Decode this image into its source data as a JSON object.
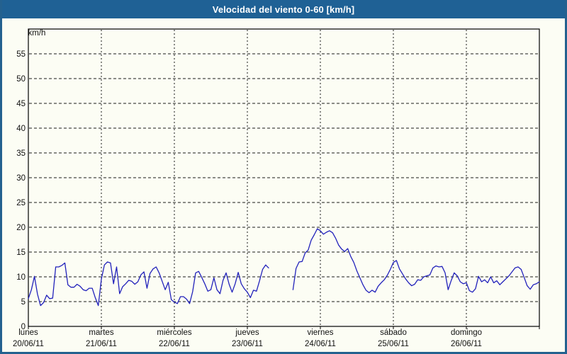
{
  "window": {
    "title": "Velocidad del viento 0-60 [km/h]"
  },
  "colors": {
    "frame": "#24618f",
    "titlebar_bg": "#1f6195",
    "title_text": "#ffffff",
    "content_bg": "#fcfdf4",
    "axis": "#000000",
    "grid": "#1a1a1a",
    "tick_text": "#111111",
    "series_line": "#2222bb"
  },
  "chart_data": {
    "type": "line",
    "title": "Velocidad del viento 0-60 [km/h]",
    "unit_label": "km/h",
    "ylim": [
      0,
      60
    ],
    "ytick_step": 5,
    "ytick_labels": [
      "0",
      "5",
      "10",
      "15",
      "20",
      "25",
      "30",
      "35",
      "40",
      "45",
      "50",
      "55"
    ],
    "grid": "dashed",
    "legend": "none",
    "x_days": [
      {
        "name": "lunes",
        "date": "20/06/11"
      },
      {
        "name": "martes",
        "date": "21/06/11"
      },
      {
        "name": "miércoles",
        "date": "22/06/11"
      },
      {
        "name": "jueves",
        "date": "23/06/11"
      },
      {
        "name": "viernes",
        "date": "24/06/11"
      },
      {
        "name": "sábado",
        "date": "25/06/11"
      },
      {
        "name": "domingo",
        "date": "26/06/11"
      }
    ],
    "hours_per_point": 1,
    "note": "hourly wind speed km/h; nulls = data gap on jueves morning",
    "series": [
      {
        "name": "Velocidad del viento",
        "color": "#2222bb",
        "values": [
          5.6,
          7.4,
          10.1,
          6.5,
          4.2,
          4.8,
          6.3,
          5.6,
          5.7,
          12.0,
          12.0,
          12.3,
          12.8,
          8.4,
          7.9,
          7.9,
          8.5,
          8.1,
          7.4,
          7.2,
          7.7,
          7.7,
          5.8,
          4.2,
          9.5,
          12.4,
          13.0,
          12.8,
          8.6,
          12.0,
          6.6,
          8.0,
          8.6,
          9.3,
          9.1,
          8.5,
          9.0,
          10.4,
          11.0,
          7.7,
          10.7,
          11.6,
          12.0,
          10.8,
          9.1,
          7.4,
          8.9,
          5.4,
          4.9,
          4.6,
          6.0,
          6.0,
          5.5,
          4.6,
          7.0,
          10.8,
          11.1,
          9.9,
          8.6,
          7.1,
          7.4,
          9.8,
          7.4,
          6.6,
          9.3,
          10.8,
          8.5,
          6.9,
          8.6,
          10.9,
          8.6,
          7.6,
          6.9,
          5.8,
          7.3,
          7.1,
          9.2,
          11.5,
          12.4,
          11.8,
          null,
          null,
          null,
          null,
          null,
          null,
          null,
          7.4,
          11.7,
          13.0,
          13.1,
          14.8,
          15.4,
          17.4,
          18.5,
          19.7,
          19.3,
          18.6,
          19.0,
          19.3,
          18.9,
          17.8,
          16.4,
          15.6,
          15.1,
          15.7,
          14.1,
          12.9,
          11.2,
          9.8,
          8.4,
          7.3,
          6.8,
          7.3,
          6.9,
          8.1,
          8.8,
          9.4,
          10.3,
          11.5,
          12.9,
          13.3,
          11.6,
          10.6,
          9.6,
          8.8,
          8.2,
          8.5,
          9.4,
          9.3,
          10.0,
          10.2,
          10.4,
          11.8,
          12.2,
          12.0,
          12.1,
          10.8,
          7.4,
          9.2,
          10.8,
          10.2,
          9.0,
          8.6,
          8.8,
          7.2,
          6.9,
          7.6,
          10.1,
          9.0,
          9.4,
          8.8,
          10.0,
          8.8,
          9.2,
          8.4,
          9.0,
          9.6,
          10.2,
          11.0,
          11.8,
          12.0,
          11.5,
          9.9,
          8.2,
          7.5,
          8.4,
          8.6,
          9.0
        ]
      }
    ]
  }
}
